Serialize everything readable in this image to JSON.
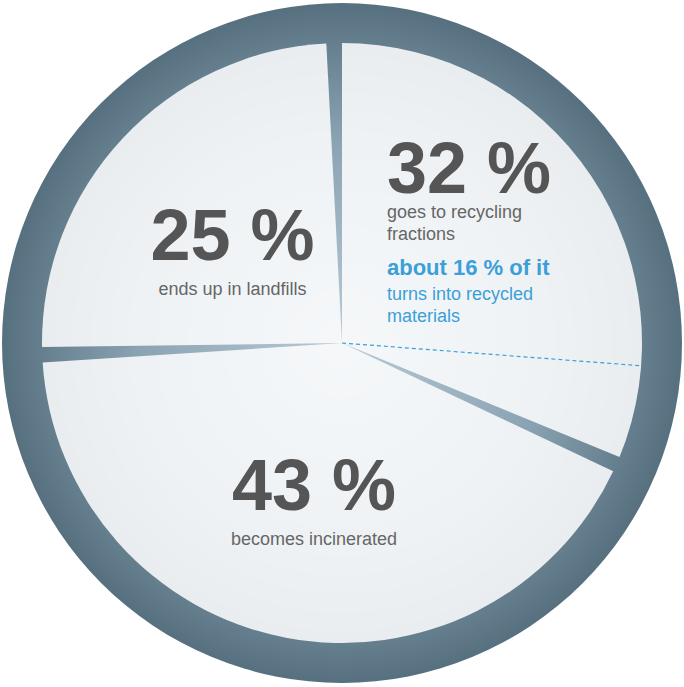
{
  "chart_data": {
    "type": "pie",
    "categories": [
      "goes to recycling fractions",
      "becomes incinerated",
      "ends up in landfills"
    ],
    "values": [
      32,
      43,
      25
    ],
    "value_labels": [
      "32 %",
      "43 %",
      "25 %"
    ],
    "color": "#ffffff",
    "data_labels": true,
    "annotations": [
      {
        "category": "goes to recycling fractions",
        "value": 16,
        "label": "about 16 % of it",
        "text": "turns into recycled materials"
      }
    ]
  }
}
